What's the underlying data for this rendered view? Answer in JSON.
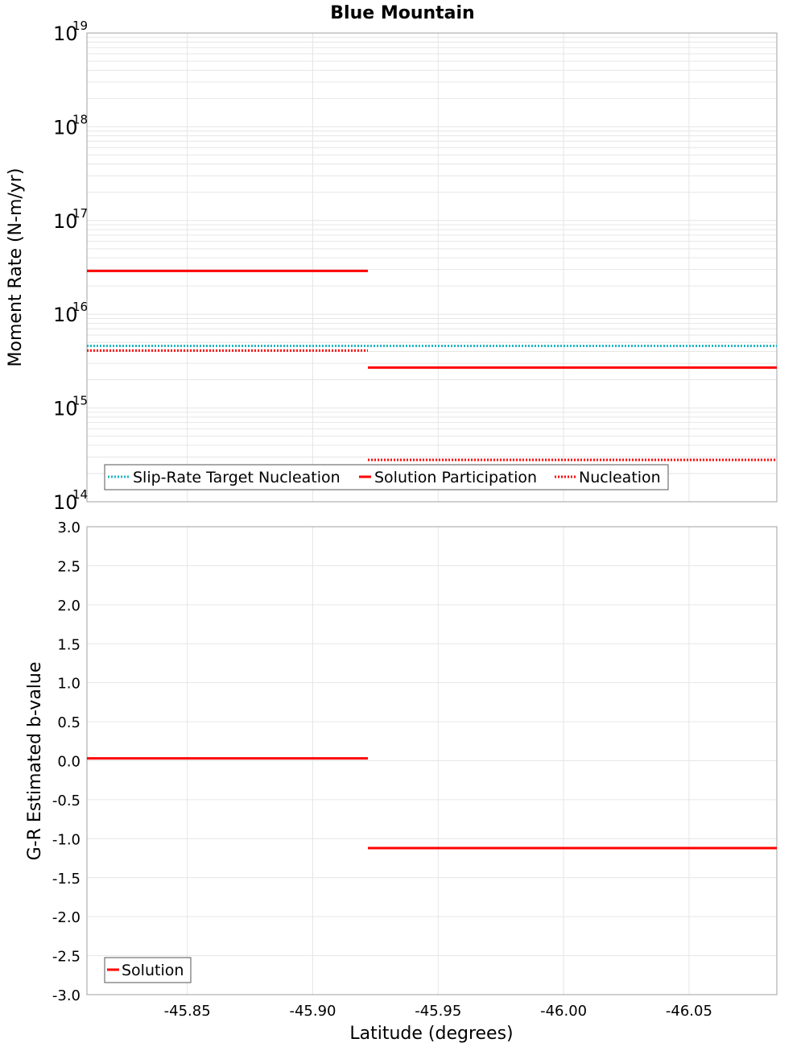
{
  "title": "Blue Mountain",
  "colors": {
    "cyan": "#1fb8c3",
    "red": "#ff0000",
    "grid": "#e6e6e6",
    "frame": "#a0a0a0"
  },
  "chart_data": [
    {
      "type": "line",
      "scale": "log",
      "ylabel": "Moment Rate (N-m/yr)",
      "xlabel": "",
      "xlim": [
        -45.81,
        -46.085
      ],
      "ylim_exp": [
        14,
        19
      ],
      "ytick_base": "10",
      "ytick_exps": [
        "14",
        "15",
        "16",
        "17",
        "18",
        "19"
      ],
      "series": [
        {
          "name": "Slip-Rate Target Nucleation",
          "style": "dotted",
          "color": "#1fb8c3",
          "segments": [
            {
              "x": [
                -45.81,
                -46.085
              ],
              "y": 4600000000000000.0
            }
          ]
        },
        {
          "name": "Solution Participation",
          "style": "solid",
          "color": "#ff0000",
          "segments": [
            {
              "x": [
                -45.81,
                -45.922
              ],
              "y": 2.9e+16
            },
            {
              "x": [
                -45.922,
                -46.085
              ],
              "y": 2700000000000000.0
            }
          ]
        },
        {
          "name": "Nucleation",
          "style": "dotted",
          "color": "#ff0000",
          "segments": [
            {
              "x": [
                -45.81,
                -45.922
              ],
              "y": 4100000000000000.0
            },
            {
              "x": [
                -45.922,
                -46.085
              ],
              "y": 280000000000000.0
            }
          ]
        }
      ],
      "legend": [
        "Slip-Rate Target Nucleation",
        "Solution Participation",
        "Nucleation"
      ],
      "legend_position": "bottom-left"
    },
    {
      "type": "line",
      "scale": "linear",
      "ylabel": "G-R Estimated b-value",
      "xlabel": "Latitude (degrees)",
      "xlim": [
        -45.81,
        -46.085
      ],
      "ylim": [
        -3.0,
        3.0
      ],
      "yticks": [
        "3.0",
        "2.5",
        "2.0",
        "1.5",
        "1.0",
        "0.5",
        "0.0",
        "-0.5",
        "-1.0",
        "-1.5",
        "-2.0",
        "-2.5",
        "-3.0"
      ],
      "xticks": [
        "-45.85",
        "-45.90",
        "-45.95",
        "-46.00",
        "-46.05"
      ],
      "series": [
        {
          "name": "Solution",
          "style": "solid",
          "color": "#ff0000",
          "segments": [
            {
              "x": [
                -45.81,
                -45.922
              ],
              "y": 0.03
            },
            {
              "x": [
                -45.922,
                -46.085
              ],
              "y": -1.12
            }
          ]
        }
      ],
      "legend": [
        "Solution"
      ],
      "legend_position": "bottom-left"
    }
  ]
}
